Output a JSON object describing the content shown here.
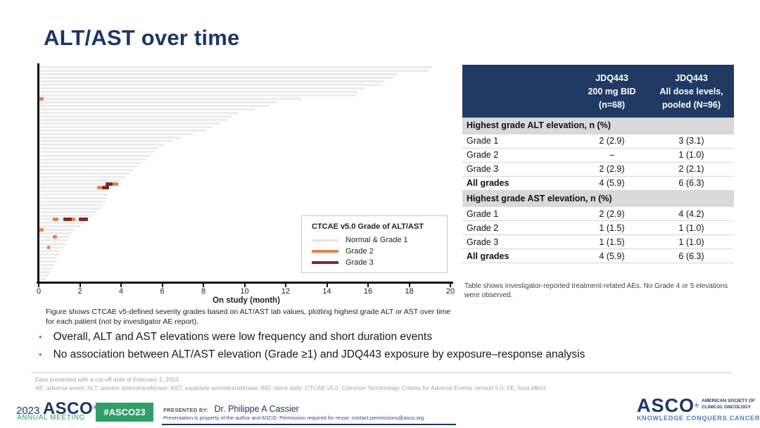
{
  "slide": {
    "title": "ALT/AST over time",
    "bullets": [
      "Overall, ALT and AST elevations were low frequency and short duration events",
      "No association between ALT/AST elevation (Grade ≥1) and JDQ443 exposure by exposure–response analysis"
    ],
    "footnotes": [
      "Data presented with a cut-off date of February 1, 2023.",
      "AE, adverse event; ALT, alanine aminotransferase; AST, aspartate aminotransferase; BID, twice daily; CTCAE v5.0, Common Terminology Criteria for Adverse Events version 5.0; FE, food effect."
    ]
  },
  "chart_data": {
    "type": "bar",
    "subtype": "horizontal-swimmer",
    "xlabel": "On study (month)",
    "xlim": [
      0,
      20
    ],
    "xticks": [
      0,
      2,
      4,
      6,
      8,
      10,
      12,
      14,
      16,
      18,
      20
    ],
    "grid": false,
    "legend": {
      "title": "CTCAE v5.0 Grade of ALT/AST",
      "position": "lower-right",
      "entries": [
        {
          "label": "Normal & Grade 1",
          "color": "#e3e3e3"
        },
        {
          "label": "Grade 2",
          "color": "#e0854d"
        },
        {
          "label": "Grade 3",
          "color": "#7d2b25"
        }
      ]
    },
    "caption": "Figure shows CTCAE v5-defined severity grades based on ALT/AST lab values, plotting highest grade ALT or AST over time for each patient (not by investigator AE report).",
    "bar_color": "#ebebeb",
    "grade_colors": {
      "2": "#e0854d",
      "3": "#7d2b25"
    },
    "bars": [
      {
        "months": 19.1
      },
      {
        "months": 18.9
      },
      {
        "months": 17.4
      },
      {
        "months": 17.2
      },
      {
        "months": 16.8
      },
      {
        "months": 16.6
      },
      {
        "months": 15.8
      },
      {
        "months": 15.5
      },
      {
        "months": 15.4
      },
      {
        "months": 12.8,
        "segments": [
          {
            "start": 0,
            "end": 0.25,
            "grade": 2
          }
        ]
      },
      {
        "months": 11.6
      },
      {
        "months": 11.2
      },
      {
        "months": 10.5
      },
      {
        "months": 9.7
      },
      {
        "months": 9.4
      },
      {
        "months": 9.2
      },
      {
        "months": 8.8
      },
      {
        "months": 8.4
      },
      {
        "months": 8.1
      },
      {
        "months": 7.5
      },
      {
        "months": 6.9
      },
      {
        "months": 6.5
      },
      {
        "months": 6.1
      },
      {
        "months": 5.8
      },
      {
        "months": 5.6
      },
      {
        "months": 5.4
      },
      {
        "months": 5.2
      },
      {
        "months": 5.0
      },
      {
        "months": 4.8
      },
      {
        "months": 4.6
      },
      {
        "months": 4.4
      },
      {
        "months": 4.2
      },
      {
        "months": 4.0
      },
      {
        "months": 3.85,
        "segments": [
          {
            "start": 3.25,
            "end": 3.6,
            "grade": 3
          },
          {
            "start": 3.6,
            "end": 3.85,
            "grade": 2
          }
        ]
      },
      {
        "months": 3.45,
        "segments": [
          {
            "start": 2.85,
            "end": 3.08,
            "grade": 2
          },
          {
            "start": 3.08,
            "end": 3.42,
            "grade": 3
          }
        ]
      },
      {
        "months": 3.4
      },
      {
        "months": 3.35
      },
      {
        "months": 3.3
      },
      {
        "months": 3.2
      },
      {
        "months": 3.1
      },
      {
        "months": 3.0
      },
      {
        "months": 2.8
      },
      {
        "months": 2.6
      },
      {
        "months": 2.4,
        "segments": [
          {
            "start": 0.68,
            "end": 0.96,
            "grade": 2
          },
          {
            "start": 1.2,
            "end": 1.6,
            "grade": 3
          },
          {
            "start": 1.6,
            "end": 1.77,
            "grade": 2
          },
          {
            "start": 1.95,
            "end": 2.4,
            "grade": 3
          }
        ]
      },
      {
        "months": 2.2
      },
      {
        "months": 2.0
      },
      {
        "months": 1.75,
        "segments": [
          {
            "start": 0,
            "end": 0.25,
            "grade": 2
          }
        ]
      },
      {
        "months": 1.6
      },
      {
        "months": 1.5,
        "segments": [
          {
            "start": 0.7,
            "end": 0.9,
            "grade": 2
          }
        ]
      },
      {
        "months": 1.4
      },
      {
        "months": 1.3
      },
      {
        "months": 1.2,
        "segments": [
          {
            "start": 0.42,
            "end": 0.55,
            "grade": 2
          }
        ]
      },
      {
        "months": 1.1
      },
      {
        "months": 1.0
      },
      {
        "months": 0.9
      },
      {
        "months": 0.85
      },
      {
        "months": 0.75
      },
      {
        "months": 0.65
      },
      {
        "months": 0.55
      },
      {
        "months": 0.45
      },
      {
        "months": 0.35
      }
    ]
  },
  "table": {
    "col_headers": [
      {
        "lines": [
          "",
          "",
          ""
        ]
      },
      {
        "lines": [
          "JDQ443",
          "200 mg BID",
          "(n=68)"
        ]
      },
      {
        "lines": [
          "JDQ443",
          "All dose levels,",
          "pooled (N=96)"
        ]
      }
    ],
    "header_bg": "#1f3a63",
    "section_bg": "#d9d9d9",
    "sections": [
      {
        "header": "Highest grade ALT elevation, n (%)",
        "rows": [
          {
            "label": "Grade 1",
            "values": [
              "2 (2.9)",
              "3 (3.1)"
            ],
            "bold": false
          },
          {
            "label": "Grade 2",
            "values": [
              "–",
              "1 (1.0)"
            ],
            "bold": false
          },
          {
            "label": "Grade 3",
            "values": [
              "2 (2.9)",
              "2 (2.1)"
            ],
            "bold": false
          },
          {
            "label": "All grades",
            "values": [
              "4 (5.9)",
              "6 (6.3)"
            ],
            "bold": true
          }
        ]
      },
      {
        "header": "Highest grade AST elevation, n (%)",
        "rows": [
          {
            "label": "Grade 1",
            "values": [
              "2 (2.9)",
              "4 (4.2)"
            ],
            "bold": false
          },
          {
            "label": "Grade 2",
            "values": [
              "1 (1.5)",
              "1 (1.0)"
            ],
            "bold": false
          },
          {
            "label": "Grade 3",
            "values": [
              "1 (1.5)",
              "1 (1.0)"
            ],
            "bold": false
          },
          {
            "label": "All grades",
            "values": [
              "4 (5.9)",
              "6 (6.3)"
            ],
            "bold": true
          }
        ]
      }
    ],
    "footnote": "Table shows investigator-reported treatment-related AEs. No Grade 4 or 5 elevations were observed."
  },
  "footer": {
    "meeting": {
      "year": "2023",
      "org": "ASCO",
      "reg": "®",
      "sub": "ANNUAL MEETING"
    },
    "hashtag": "#ASCO23",
    "presented_by_label": "PRESENTED BY:",
    "presenter": "Dr. Philippe  A Cassier",
    "permission": "Presentation is property of the author and ASCO. Permission required for reuse; contact permissions@asco.org.",
    "asco_logo": {
      "org": "ASCO",
      "reg": "®",
      "side_line1": "AMERICAN SOCIETY OF",
      "side_line2": "CLINICAL ONCOLOGY",
      "tagline": "KNOWLEDGE CONQUERS CANCER"
    },
    "accent_green": "#2e9e6b",
    "accent_navy": "#1c3667",
    "accent_steel_blue": "#4a7ebb"
  }
}
